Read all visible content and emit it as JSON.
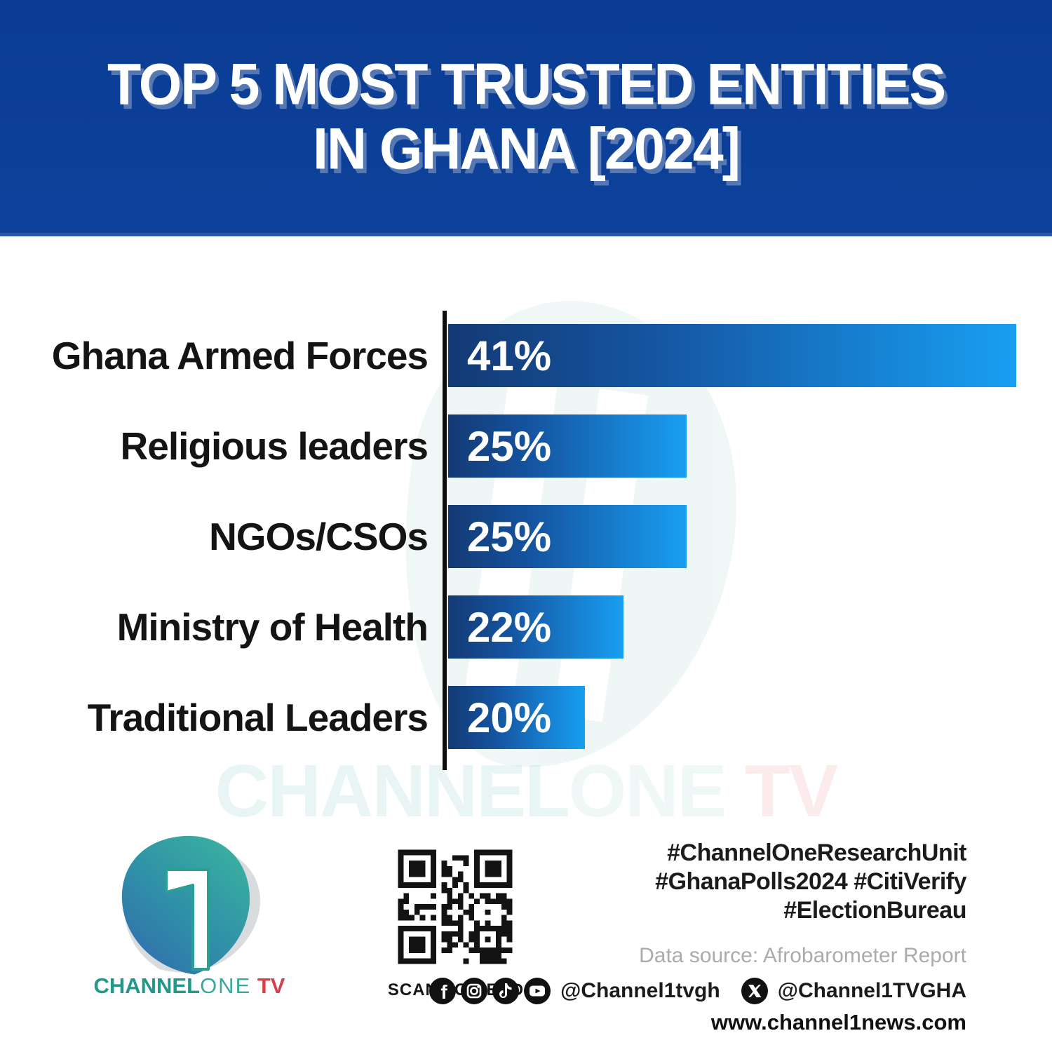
{
  "banner": {
    "title_line1": "TOP 5 MOST TRUSTED ENTITIES",
    "title_line2": "IN GHANA [2024]",
    "bg_color": "#0a3c93"
  },
  "chart_data": {
    "type": "bar",
    "orientation": "horizontal",
    "title": "Top 5 Most Trusted Entities in Ghana [2024]",
    "categories": [
      "Ghana Armed Forces",
      "Religious leaders",
      "NGOs/CSOs",
      "Ministry of Health",
      "Traditional Leaders"
    ],
    "values": [
      41,
      25,
      25,
      22,
      20
    ],
    "value_labels": [
      "41%",
      "25%",
      "25%",
      "22%",
      "20%"
    ],
    "unit": "%",
    "grid": false,
    "legend": false,
    "bar_color_gradient": [
      "#133a74",
      "#189ff2"
    ],
    "display_width_pct": [
      100,
      42,
      42,
      30.9,
      24.1
    ],
    "data_source": "Afrobarometer Report"
  },
  "watermark": {
    "part1": "CHANNEL",
    "part2": "ONE",
    "part3": " TV"
  },
  "footer": {
    "logo": {
      "brand_part1": "CHANNEL",
      "brand_part2": "ONE",
      "brand_part3": " TV"
    },
    "qr_caption": "SCAN TO READ",
    "hashtags_line1": "#ChannelOneResearchUnit",
    "hashtags_line2": "#GhanaPolls2024 #CitiVerify",
    "hashtags_line3": "#ElectionBureau",
    "data_source": "Data source: Afrobarometer Report",
    "social_handle1": "@Channel1tvgh",
    "social_handle2": "@Channel1TVGHA",
    "website": "www.channel1news.com",
    "social_icons": [
      "facebook-icon",
      "instagram-icon",
      "tiktok-icon",
      "youtube-icon",
      "x-icon"
    ]
  }
}
